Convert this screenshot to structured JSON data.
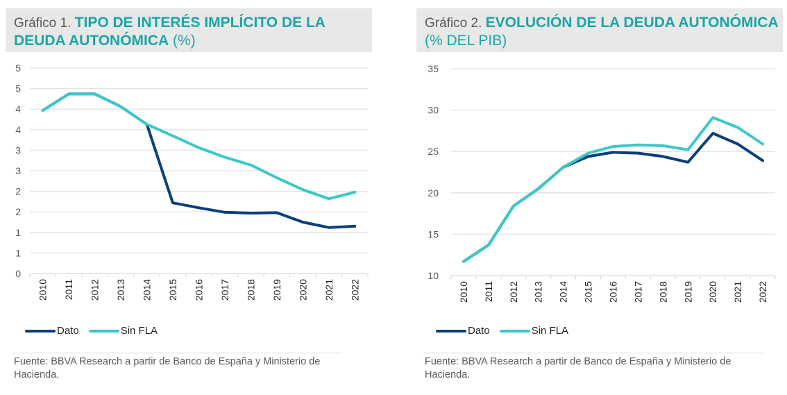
{
  "colors": {
    "dato": "#0b3f78",
    "sin_fla": "#3ec7c7",
    "title_accent": "#1aa6a6",
    "header_bg": "#e8e8e8",
    "grid": "#e3e3e3",
    "axis_text": "#595959"
  },
  "charts": [
    {
      "prefix": "Gráfico 1. ",
      "title_main": "TIPO DE INTERÉS IMPLÍCITO DE LA DEUDA AUTONÓMICA",
      "title_unit": " (%)",
      "legend": [
        "Dato",
        "Sin FLA"
      ],
      "source": "Fuente: BBVA Research a partir de Banco de España y Ministerio de Hacienda."
    },
    {
      "prefix": "Gráfico 2. ",
      "title_main": "EVOLUCIÓN DE LA DEUDA AUTONÓMICA",
      "title_unit": " (% DEL PIB)",
      "legend": [
        "Dato",
        "Sin FLA"
      ],
      "source": "Fuente: BBVA Research a partir de Banco de España y Ministerio de Hacienda."
    }
  ],
  "chart_data": [
    {
      "type": "line",
      "title": "Gráfico 1. TIPO DE INTERÉS IMPLÍCITO DE LA DEUDA AUTONÓMICA (%)",
      "xlabel": "",
      "ylabel": "",
      "categories": [
        "2010",
        "2011",
        "2012",
        "2013",
        "2014",
        "2015",
        "2016",
        "2017",
        "2018",
        "2019",
        "2020",
        "2021",
        "2022"
      ],
      "series": [
        {
          "name": "Dato",
          "values": [
            3.97,
            4.37,
            4.37,
            4.06,
            3.63,
            1.72,
            1.6,
            1.49,
            1.47,
            1.48,
            1.25,
            1.12,
            1.15
          ]
        },
        {
          "name": "Sin FLA",
          "values": [
            3.97,
            4.37,
            4.37,
            4.06,
            3.63,
            3.35,
            3.06,
            2.83,
            2.64,
            2.33,
            2.04,
            1.82,
            1.98
          ]
        }
      ],
      "ylim": [
        0,
        5
      ],
      "ytick_values": [
        0,
        0.5,
        1,
        1.5,
        2,
        2.5,
        3,
        3.5,
        4,
        4.5,
        5
      ],
      "ytick_labels": [
        "0",
        "1",
        "1",
        "2",
        "2",
        "3",
        "3",
        "4",
        "4",
        "5",
        "5"
      ],
      "grid": true,
      "legend_position": "bottom-left"
    },
    {
      "type": "line",
      "title": "Gráfico 2. EVOLUCIÓN DE LA DEUDA AUTONÓMICA (% DEL PIB)",
      "xlabel": "",
      "ylabel": "",
      "categories": [
        "2010",
        "2011",
        "2012",
        "2013",
        "2014",
        "2015",
        "2016",
        "2017",
        "2018",
        "2019",
        "2020",
        "2021",
        "2022"
      ],
      "series": [
        {
          "name": "Dato",
          "values": [
            11.7,
            13.7,
            18.4,
            20.5,
            23.1,
            24.4,
            24.9,
            24.8,
            24.4,
            23.7,
            27.2,
            25.9,
            23.9
          ]
        },
        {
          "name": "Sin FLA",
          "values": [
            11.7,
            13.7,
            18.4,
            20.5,
            23.1,
            24.8,
            25.6,
            25.8,
            25.7,
            25.2,
            29.1,
            27.9,
            25.9
          ]
        }
      ],
      "ylim": [
        10,
        35
      ],
      "ytick_values": [
        10,
        15,
        20,
        25,
        30,
        35
      ],
      "ytick_labels": [
        "10",
        "15",
        "20",
        "25",
        "30",
        "35"
      ],
      "grid": true,
      "legend_position": "bottom-left"
    }
  ]
}
